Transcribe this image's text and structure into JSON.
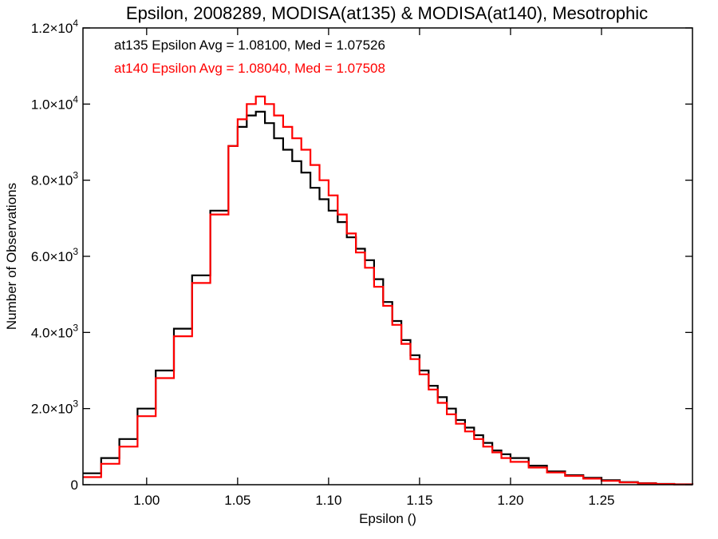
{
  "chart_data": {
    "type": "line",
    "title": "Epsilon, 2008289, MODISA(at135) & MODISA(at140), Mesotrophic",
    "xlabel": "Epsilon ()",
    "ylabel": "Number of Observations",
    "xlim": [
      0.965,
      1.3
    ],
    "ylim": [
      0,
      12000
    ],
    "grid": false,
    "x_ticks": [
      {
        "value": 1.0,
        "label": "1.00"
      },
      {
        "value": 1.05,
        "label": "1.05"
      },
      {
        "value": 1.1,
        "label": "1.10"
      },
      {
        "value": 1.15,
        "label": "1.15"
      },
      {
        "value": 1.2,
        "label": "1.20"
      },
      {
        "value": 1.25,
        "label": "1.25"
      }
    ],
    "y_ticks": [
      {
        "value": 0,
        "mantissa": "0",
        "exponent": ""
      },
      {
        "value": 2000,
        "mantissa": "2.0×10",
        "exponent": "3"
      },
      {
        "value": 4000,
        "mantissa": "4.0×10",
        "exponent": "3"
      },
      {
        "value": 6000,
        "mantissa": "6.0×10",
        "exponent": "3"
      },
      {
        "value": 8000,
        "mantissa": "8.0×10",
        "exponent": "3"
      },
      {
        "value": 10000,
        "mantissa": "1.0×10",
        "exponent": "4"
      },
      {
        "value": 12000,
        "mantissa": "1.2×10",
        "exponent": "4"
      }
    ],
    "annotations": [
      {
        "text": "at135 Epsilon Avg = 1.08100, Med = 1.07526",
        "color": "#000000"
      },
      {
        "text": "at140 Epsilon Avg = 1.08040, Med = 1.07508",
        "color": "#ff0000"
      }
    ],
    "series": [
      {
        "color": "#000000",
        "x": [
          0.965,
          0.975,
          0.985,
          0.995,
          1.005,
          1.015,
          1.025,
          1.035,
          1.045,
          1.05,
          1.055,
          1.06,
          1.065,
          1.07,
          1.075,
          1.08,
          1.085,
          1.09,
          1.095,
          1.1,
          1.105,
          1.11,
          1.115,
          1.12,
          1.125,
          1.13,
          1.135,
          1.14,
          1.145,
          1.15,
          1.155,
          1.16,
          1.165,
          1.17,
          1.175,
          1.18,
          1.185,
          1.19,
          1.195,
          1.2,
          1.21,
          1.22,
          1.23,
          1.24,
          1.25,
          1.26,
          1.27,
          1.28,
          1.29,
          1.3
        ],
        "values": [
          300,
          700,
          1200,
          2000,
          3000,
          4100,
          5500,
          7200,
          8900,
          9400,
          9700,
          9800,
          9500,
          9100,
          8800,
          8500,
          8200,
          7800,
          7500,
          7200,
          6900,
          6500,
          6200,
          5900,
          5400,
          4800,
          4300,
          3800,
          3400,
          3000,
          2600,
          2300,
          2000,
          1700,
          1500,
          1300,
          1100,
          900,
          800,
          700,
          500,
          350,
          250,
          180,
          120,
          70,
          40,
          20,
          10,
          5
        ]
      },
      {
        "color": "#ff0000",
        "x": [
          0.965,
          0.975,
          0.985,
          0.995,
          1.005,
          1.015,
          1.025,
          1.035,
          1.045,
          1.05,
          1.055,
          1.06,
          1.065,
          1.07,
          1.075,
          1.08,
          1.085,
          1.09,
          1.095,
          1.1,
          1.105,
          1.11,
          1.115,
          1.12,
          1.125,
          1.13,
          1.135,
          1.14,
          1.145,
          1.15,
          1.155,
          1.16,
          1.165,
          1.17,
          1.175,
          1.18,
          1.185,
          1.19,
          1.195,
          1.2,
          1.21,
          1.22,
          1.23,
          1.24,
          1.25,
          1.26,
          1.27,
          1.28,
          1.29,
          1.3
        ],
        "values": [
          200,
          550,
          1000,
          1800,
          2800,
          3900,
          5300,
          7100,
          8900,
          9600,
          10000,
          10200,
          10000,
          9700,
          9400,
          9100,
          8800,
          8400,
          8000,
          7600,
          7100,
          6600,
          6100,
          5700,
          5200,
          4700,
          4200,
          3700,
          3300,
          2900,
          2500,
          2150,
          1850,
          1600,
          1400,
          1200,
          1000,
          850,
          700,
          600,
          450,
          320,
          230,
          160,
          100,
          60,
          35,
          18,
          8,
          4
        ]
      }
    ]
  }
}
